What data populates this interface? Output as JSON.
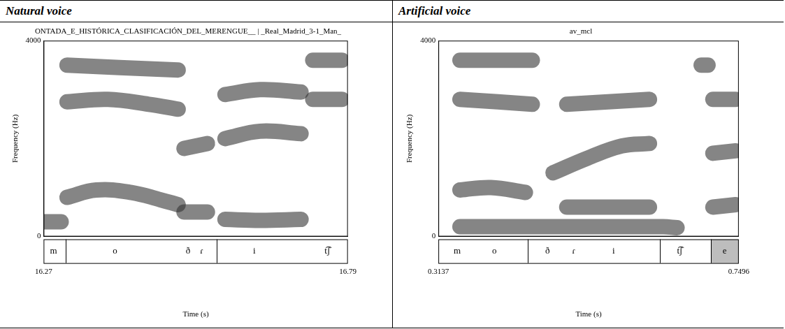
{
  "header": [
    "Natural voice",
    "Artificial voice"
  ],
  "chart_data": [
    {
      "type": "spectrogram",
      "title": "ONTADA_E_HISTÓRICA_CLASIFICACIÓN_DEL_MERENGUE__ | _Real_Madrid_3-1_Man_",
      "x_label": "Time (s)",
      "y_label": "Frequency (Hz)",
      "xlim": [
        16.27,
        16.79
      ],
      "xticks": [
        16.27,
        16.79
      ],
      "ylim": [
        0,
        4000
      ],
      "yticks": [
        0,
        4000
      ],
      "grid": false,
      "color": "#333333",
      "bands": [
        {
          "x": [
            16.27,
            16.3
          ],
          "values": [
            300,
            300
          ]
        },
        {
          "x": [
            16.31,
            16.36,
            16.42,
            16.47,
            16.5
          ],
          "values": [
            800,
            950,
            900,
            750,
            650
          ]
        },
        {
          "x": [
            16.31,
            16.38,
            16.45,
            16.5
          ],
          "values": [
            2750,
            2800,
            2700,
            2600
          ]
        },
        {
          "x": [
            16.31,
            16.4,
            16.5
          ],
          "values": [
            3500,
            3450,
            3400
          ]
        },
        {
          "x": [
            16.51,
            16.55
          ],
          "values": [
            500,
            500
          ]
        },
        {
          "x": [
            16.51,
            16.55
          ],
          "values": [
            1800,
            1900
          ]
        },
        {
          "x": [
            16.58,
            16.64,
            16.71
          ],
          "values": [
            350,
            330,
            350
          ]
        },
        {
          "x": [
            16.58,
            16.64,
            16.71
          ],
          "values": [
            2000,
            2150,
            2100
          ]
        },
        {
          "x": [
            16.58,
            16.64,
            16.71
          ],
          "values": [
            2900,
            3000,
            2950
          ]
        },
        {
          "x": [
            16.73,
            16.78
          ],
          "values": [
            3600,
            3600
          ]
        },
        {
          "x": [
            16.73,
            16.78
          ],
          "values": [
            2800,
            2800
          ]
        }
      ],
      "segments": [
        {
          "text": "m",
          "time": 16.287
        },
        {
          "text": "o",
          "time": 16.392
        },
        {
          "text": "ð",
          "time": 16.517
        },
        {
          "text": "ɾ",
          "time": 16.54
        },
        {
          "text": "i",
          "time": 16.63
        },
        {
          "text": "t͡ʃ",
          "time": 16.755
        }
      ],
      "boundaries": [
        16.308,
        16.566
      ],
      "shaded": []
    },
    {
      "type": "spectrogram",
      "title": "av_mcl",
      "x_label": "Time (s)",
      "y_label": "Frequency (Hz)",
      "xlim": [
        0.3137,
        0.7496
      ],
      "xticks": [
        0.3137,
        0.7496
      ],
      "ylim": [
        0,
        4000
      ],
      "yticks": [
        0,
        4000
      ],
      "grid": false,
      "color": "#333333",
      "bands": [
        {
          "x": [
            0.345,
            0.5,
            0.64,
            0.66
          ],
          "values": [
            200,
            200,
            200,
            180
          ]
        },
        {
          "x": [
            0.345,
            0.39,
            0.44
          ],
          "values": [
            950,
            1000,
            900
          ]
        },
        {
          "x": [
            0.345,
            0.4,
            0.45
          ],
          "values": [
            2800,
            2750,
            2700
          ]
        },
        {
          "x": [
            0.345,
            0.45
          ],
          "values": [
            3600,
            3600
          ]
        },
        {
          "x": [
            0.48,
            0.53,
            0.58,
            0.62
          ],
          "values": [
            1300,
            1600,
            1850,
            1900
          ]
        },
        {
          "x": [
            0.5,
            0.62
          ],
          "values": [
            600,
            600
          ]
        },
        {
          "x": [
            0.5,
            0.62
          ],
          "values": [
            2700,
            2800
          ]
        },
        {
          "x": [
            0.695,
            0.705
          ],
          "values": [
            3500,
            3500
          ]
        },
        {
          "x": [
            0.712,
            0.745
          ],
          "values": [
            600,
            650
          ]
        },
        {
          "x": [
            0.712,
            0.745
          ],
          "values": [
            1700,
            1750
          ]
        },
        {
          "x": [
            0.712,
            0.745
          ],
          "values": [
            2800,
            2800
          ]
        }
      ],
      "segments": [
        {
          "text": "m",
          "time": 0.341
        },
        {
          "text": "o",
          "time": 0.395
        },
        {
          "text": "ð",
          "time": 0.472
        },
        {
          "text": "ɾ",
          "time": 0.51
        },
        {
          "text": "i",
          "time": 0.568
        },
        {
          "text": "t͡ʃ",
          "time": 0.664
        },
        {
          "text": "e",
          "time": 0.729
        }
      ],
      "boundaries": [
        0.443,
        0.635,
        0.709
      ],
      "shaded": [
        [
          0.709,
          0.7496
        ]
      ]
    }
  ]
}
